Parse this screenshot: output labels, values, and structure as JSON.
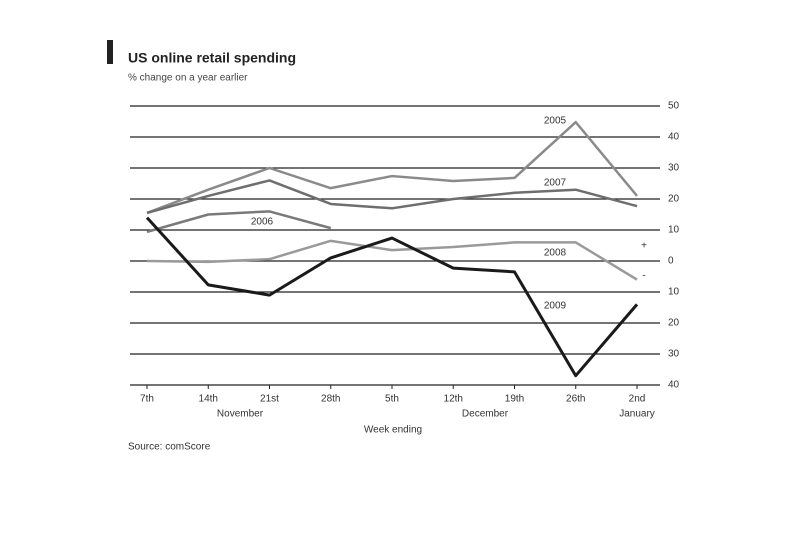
{
  "chart_data": {
    "type": "line",
    "title": "US online retail spending",
    "subtitle": "% change on a year earlier",
    "x_label": "Week ending",
    "source": "Source: comScore",
    "categories": [
      "7th",
      "14th",
      "21st",
      "28th",
      "5th",
      "12th",
      "19th",
      "26th",
      "2nd"
    ],
    "month_labels": [
      {
        "label": "November",
        "at": 2
      },
      {
        "label": "December",
        "at": 6
      },
      {
        "label": "January",
        "at": 8
      }
    ],
    "ylim": [
      -40,
      50
    ],
    "yticks": [
      {
        "value": -40,
        "label": "40"
      },
      {
        "value": -30,
        "label": "30"
      },
      {
        "value": -20,
        "label": "20"
      },
      {
        "value": -10,
        "label": "10"
      },
      0,
      10,
      20,
      30,
      40,
      50
    ],
    "sign_labels": [
      "+",
      "-"
    ],
    "grid": true,
    "series": [
      {
        "name": "2005",
        "color": "#8a8a8a",
        "values": [
          15.5,
          23,
          30,
          23.5,
          27.4,
          25.8,
          26.8,
          44.8,
          21
        ]
      },
      {
        "name": "2007",
        "color": "#6e6e6e",
        "values": [
          15.5,
          21,
          26,
          18.4,
          17,
          20,
          22,
          23,
          17.7
        ]
      },
      {
        "name": "2006",
        "color": "#7a7a7a",
        "values": [
          9.4,
          15,
          16,
          10.6,
          null,
          null,
          null,
          null,
          null
        ]
      },
      {
        "name": "2008",
        "color": "#9a9a9a",
        "values": [
          0,
          -0.3,
          0.6,
          6.5,
          3.5,
          4.5,
          6,
          6,
          -6
        ]
      },
      {
        "name": "2009",
        "color": "#1a1a1a",
        "values": [
          14,
          -7.7,
          -11,
          1,
          7.4,
          -2.3,
          -3.5,
          -37,
          -14
        ]
      }
    ]
  }
}
